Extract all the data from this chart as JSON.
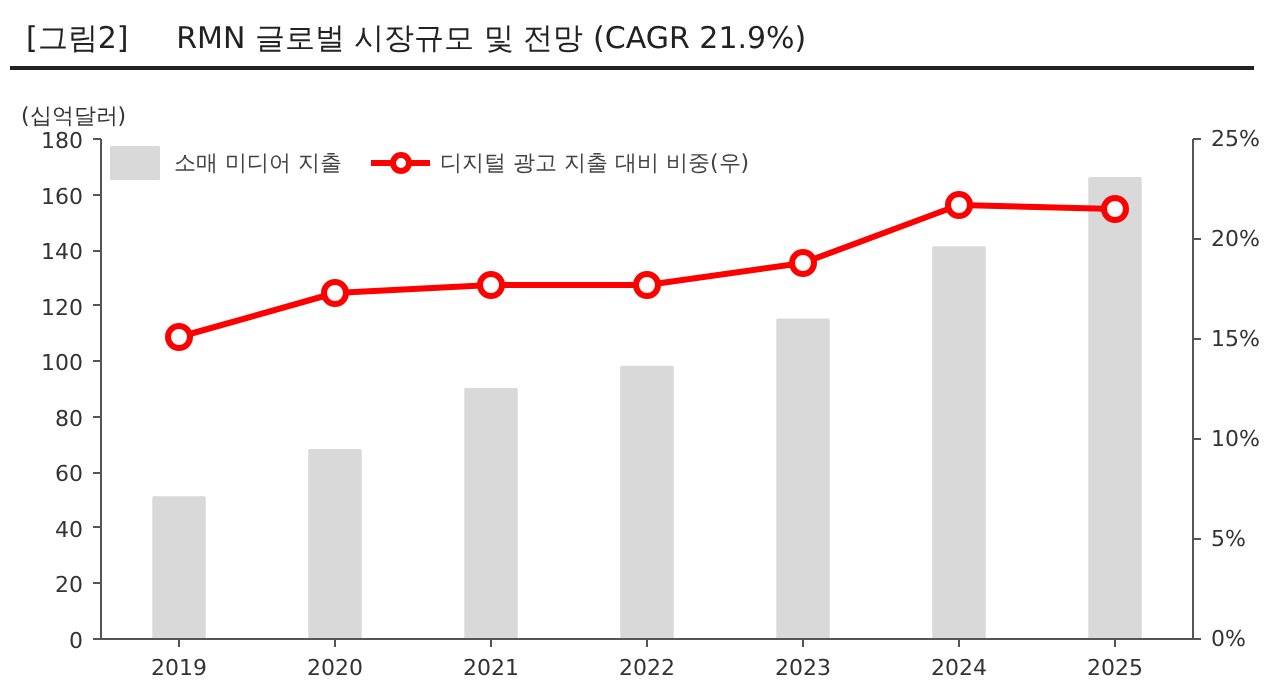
{
  "chart_data": {
    "type": "bar",
    "title": "[그림2]     RMN 글로벌 시장규모 및 전망 (CAGR 21.9%)",
    "ylabel": "(십억달러)",
    "categories": [
      "2019",
      "2020",
      "2021",
      "2022",
      "2023",
      "2024",
      "2025"
    ],
    "series": [
      {
        "name": "소매 미디어 지출",
        "color": "#d9d9d9",
        "values": [
          51,
          68,
          90,
          98,
          115,
          141,
          166
        ]
      },
      {
        "name": "디지털 광고 지출 대비 비중(우)",
        "type": "line",
        "axis": "y2",
        "color": "#ff0000",
        "marker": "circle",
        "values": [
          15.1,
          17.3,
          17.7,
          17.7,
          18.8,
          21.7,
          21.5
        ]
      }
    ],
    "ylim": [
      0,
      180
    ],
    "yticks": [
      0,
      20,
      40,
      60,
      80,
      100,
      120,
      140,
      160,
      180
    ],
    "y2lim": [
      0,
      25
    ],
    "y2ticks": [
      {
        "value": 0,
        "label": "0%"
      },
      {
        "value": 5,
        "label": "5%"
      },
      {
        "value": 10,
        "label": "10%"
      },
      {
        "value": 15,
        "label": "15%"
      },
      {
        "value": 20,
        "label": "20%"
      },
      {
        "value": 25,
        "label": "25%"
      }
    ],
    "grid": false,
    "legend": "top left"
  }
}
